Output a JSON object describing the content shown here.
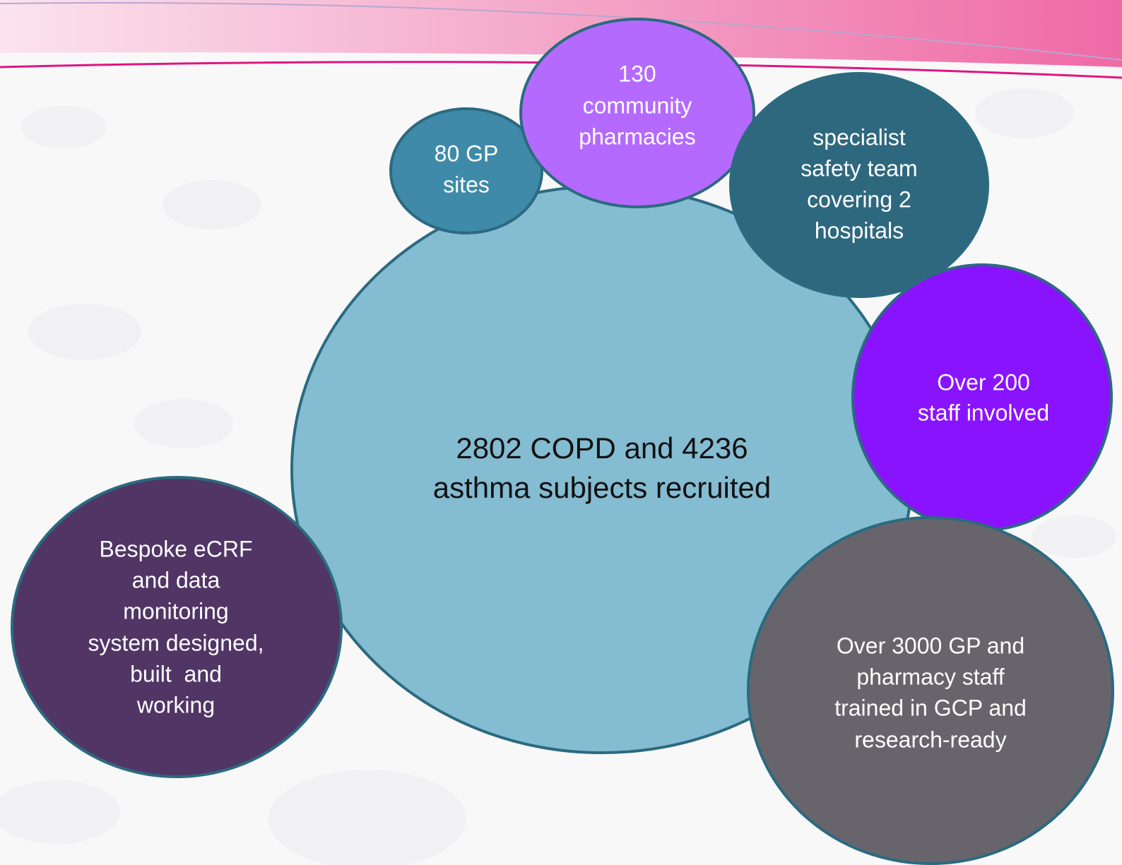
{
  "nodes": [
    {
      "lines": [
        "2802 COPD and 4236",
        "asthma subjects recruited"
      ]
    },
    {
      "lines": [
        "80 GP",
        "sites"
      ]
    },
    {
      "lines": [
        "130",
        "community",
        "pharmacies"
      ]
    },
    {
      "lines": [
        "specialist",
        "safety team",
        "covering 2",
        "hospitals"
      ]
    },
    {
      "lines": [
        "Over 200",
        "staff involved"
      ]
    },
    {
      "lines": [
        "Bespoke eCRF",
        "and data",
        "monitoring",
        "system designed,",
        "built  and",
        "working"
      ]
    },
    {
      "lines": [
        "Over 3000 GP and",
        "pharmacy staff",
        "trained in GCP and",
        "research-ready"
      ]
    }
  ]
}
